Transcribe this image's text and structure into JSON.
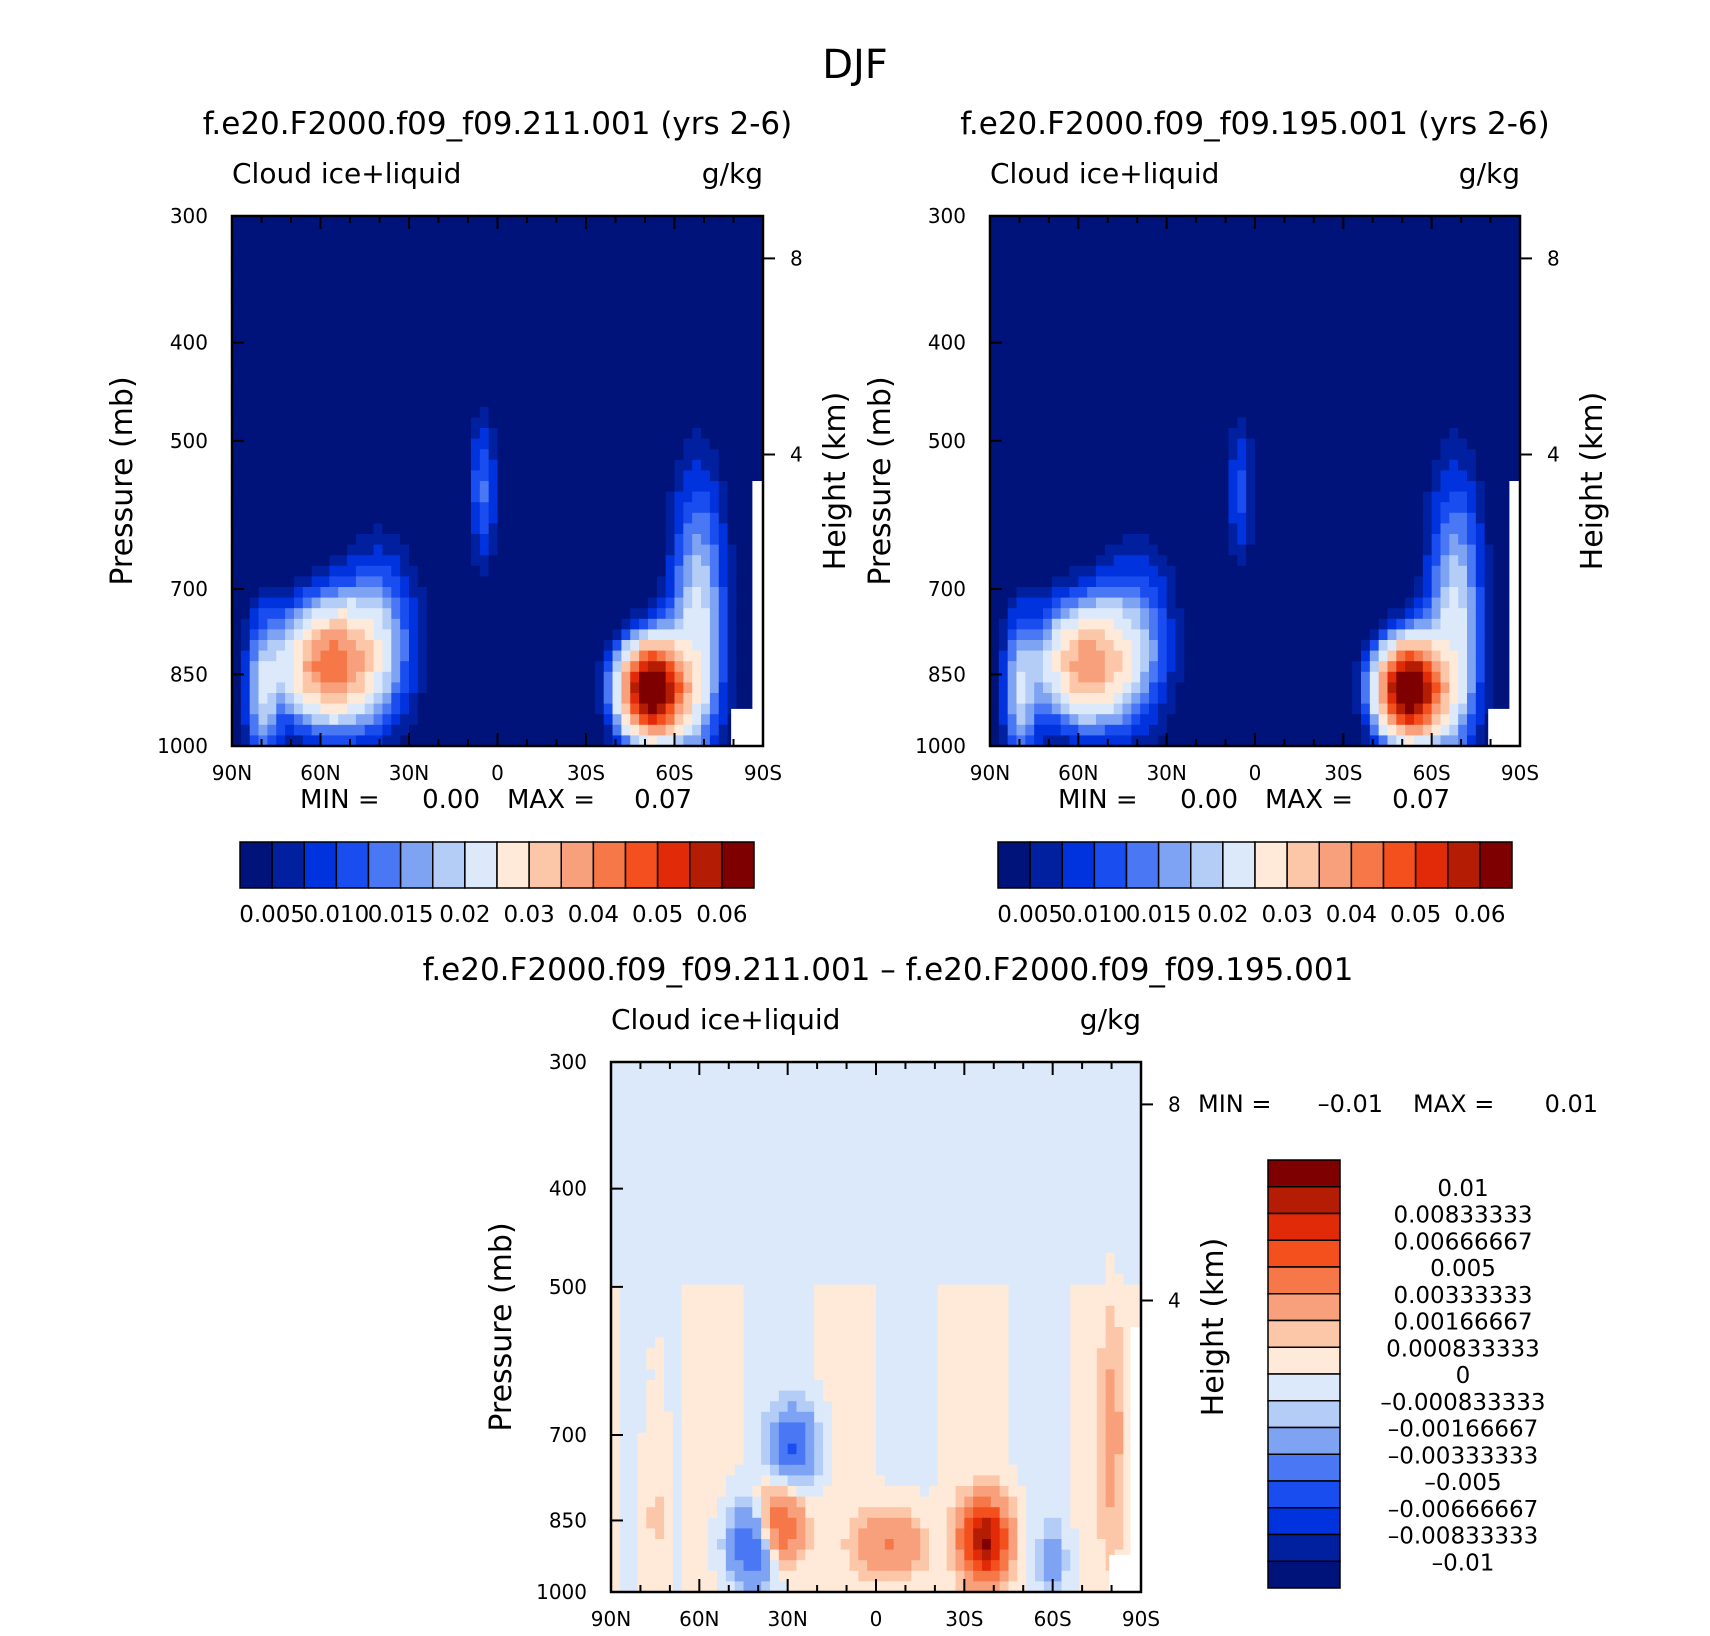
{
  "title": "DJF",
  "colors": {
    "abs_levels": [
      "#00137a",
      "#0020a0",
      "#0033dd",
      "#1a4df0",
      "#4a78f5",
      "#7ea3f2",
      "#b3cdf7",
      "#dce9fa",
      "#ffead9",
      "#fcc6a8",
      "#f8a07c",
      "#f67848",
      "#f4501e",
      "#e02a08",
      "#b41d04",
      "#7f0000"
    ],
    "diff_levels": [
      "#7f0000",
      "#b41d04",
      "#e02a08",
      "#f4501e",
      "#f67848",
      "#f8a07c",
      "#fcc6a8",
      "#ffead9",
      "#dce9fa",
      "#b3cdf7",
      "#7ea3f2",
      "#4a78f5",
      "#1a4df0",
      "#0033dd",
      "#0020a0",
      "#00137a"
    ]
  },
  "chart_data": [
    {
      "type": "heatmap",
      "title": "f.e20.F2000.f09_f09.211.001 (yrs 2-6)",
      "left_label": "Cloud ice+liquid",
      "right_label": "g/kg",
      "ylabel": "Pressure (mb)",
      "ylabel_right": "Height (km)",
      "x_ticks": [
        "90N",
        "60N",
        "30N",
        "0",
        "30S",
        "60S",
        "90S"
      ],
      "y_ticks": [
        "300",
        "400",
        "500",
        "700",
        "850",
        "1000"
      ],
      "y_ticks_right": [
        "8",
        "4"
      ],
      "min_max": {
        "min_label": "MIN =",
        "min_value": "0.00",
        "max_label": "MAX =",
        "max_value": "0.07"
      },
      "colorbar_labels": [
        "0.005",
        "0.010",
        "0.015",
        "0.02",
        "0.03",
        "0.04",
        "0.05",
        "0.06"
      ],
      "features": [
        {
          "lat": 58,
          "p": 830,
          "peak": 0.04
        },
        {
          "lat": -52,
          "p": 880,
          "peak": 0.07
        },
        {
          "lat": 5,
          "p": 560,
          "peak": 0.012
        }
      ]
    },
    {
      "type": "heatmap",
      "title": "f.e20.F2000.f09_f09.195.001 (yrs 2-6)",
      "left_label": "Cloud ice+liquid",
      "right_label": "g/kg",
      "ylabel": "Pressure (mb)",
      "ylabel_right": "Height (km)",
      "x_ticks": [
        "90N",
        "60N",
        "30N",
        "0",
        "30S",
        "60S",
        "90S"
      ],
      "y_ticks": [
        "300",
        "400",
        "500",
        "700",
        "850",
        "1000"
      ],
      "y_ticks_right": [
        "8",
        "4"
      ],
      "min_max": {
        "min_label": "MIN =",
        "min_value": "0.00",
        "max_label": "MAX =",
        "max_value": "0.07"
      },
      "colorbar_labels": [
        "0.005",
        "0.010",
        "0.015",
        "0.02",
        "0.03",
        "0.04",
        "0.05",
        "0.06"
      ],
      "features": [
        {
          "lat": 58,
          "p": 830,
          "peak": 0.035
        },
        {
          "lat": -52,
          "p": 880,
          "peak": 0.07
        },
        {
          "lat": 5,
          "p": 560,
          "peak": 0.01
        }
      ]
    },
    {
      "type": "heatmap",
      "title": "f.e20.F2000.f09_f09.211.001 – f.e20.F2000.f09_f09.195.001",
      "left_label": "Cloud ice+liquid",
      "right_label": "g/kg",
      "ylabel": "Pressure (mb)",
      "ylabel_right": "Height (km)",
      "x_ticks": [
        "90N",
        "60N",
        "30N",
        "0",
        "30S",
        "60S",
        "90S"
      ],
      "y_ticks": [
        "300",
        "400",
        "500",
        "700",
        "850",
        "1000"
      ],
      "y_ticks_right": [
        "8",
        "4"
      ],
      "min_max": {
        "min_label": "MIN =",
        "min_value": "–0.01",
        "max_label": "MAX =",
        "max_value": "0.01"
      },
      "colorbar_labels": [
        "0.01",
        "0.00833333",
        "0.00666667",
        "0.005",
        "0.00333333",
        "0.00166667",
        "0.000833333",
        "0",
        "–0.000833333",
        "–0.00166667",
        "–0.00333333",
        "–0.005",
        "–0.00666667",
        "–0.00833333",
        "–0.01"
      ],
      "features": [
        {
          "lat": 33,
          "p": 860,
          "peak": 0.006
        },
        {
          "lat": -37,
          "p": 890,
          "peak": 0.01
        },
        {
          "lat": 42,
          "p": 900,
          "peak": -0.006
        },
        {
          "lat": 28,
          "p": 720,
          "peak": -0.005
        }
      ]
    }
  ]
}
